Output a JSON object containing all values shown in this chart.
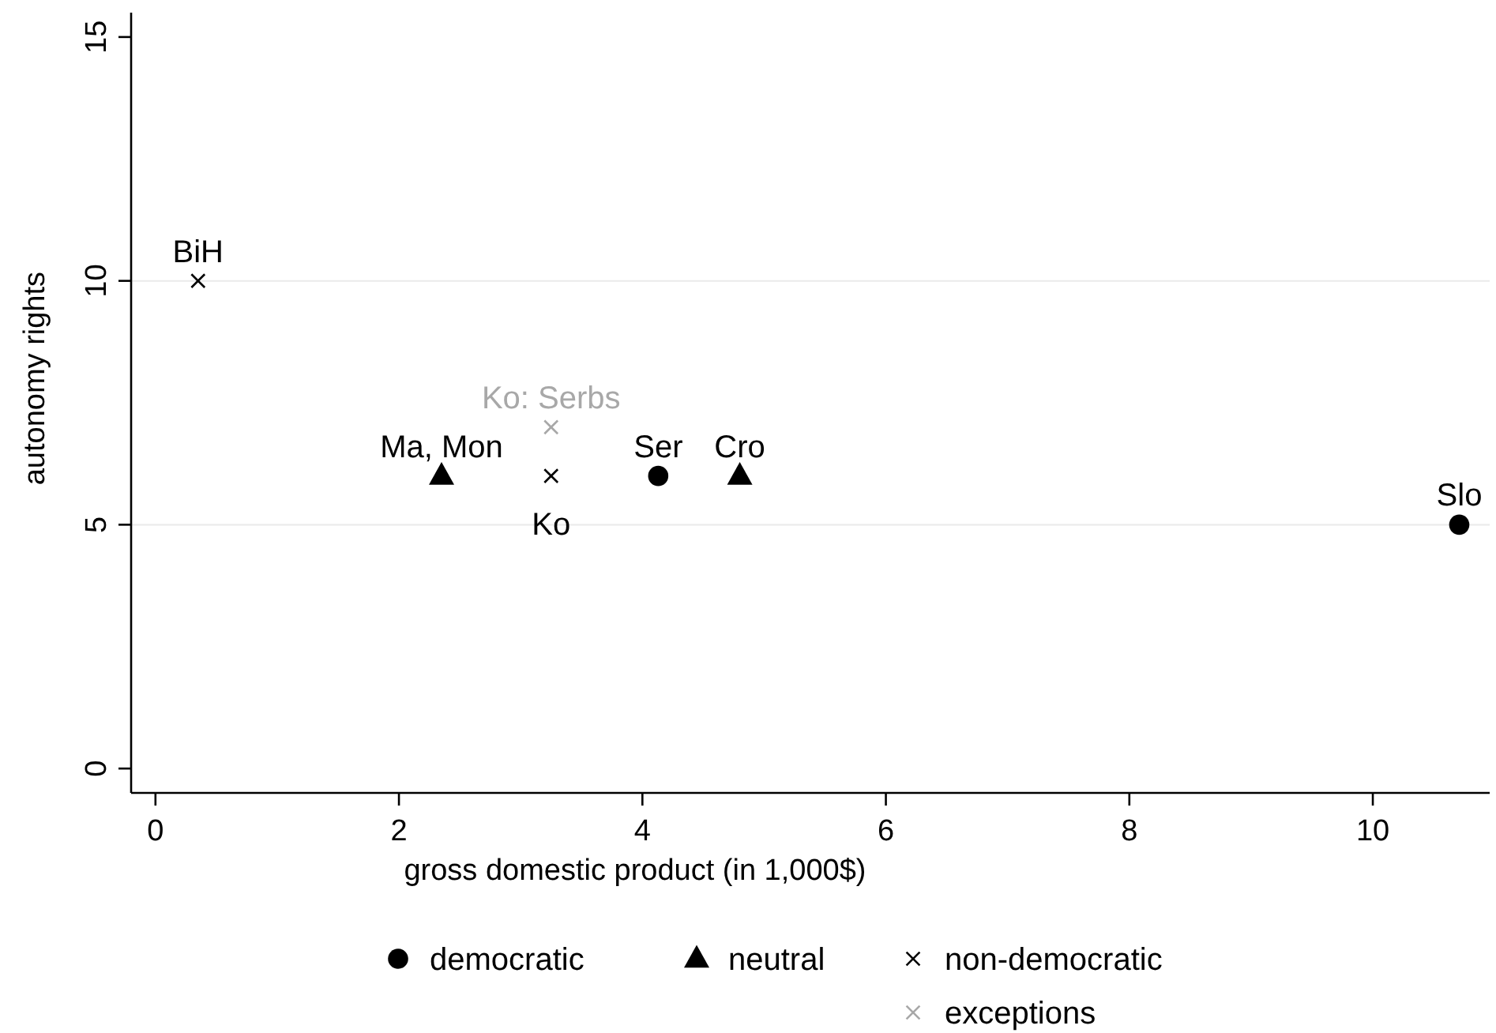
{
  "chart_data": {
    "type": "scatter",
    "xlabel": "gross domestic product (in 1,000$)",
    "ylabel": "autonomy rights",
    "xlim": [
      -0.2,
      10.96
    ],
    "ylim": [
      -0.5,
      15.5
    ],
    "xticks": [
      0,
      2,
      4,
      6,
      8,
      10
    ],
    "yticks": [
      0,
      5,
      10,
      15
    ],
    "grid": "y",
    "legend": "bottom",
    "series": [
      {
        "name": "democratic",
        "color": "#000000",
        "marker": "circle",
        "x": [
          4.13,
          10.71
        ],
        "values": [
          6,
          5
        ]
      },
      {
        "name": "neutral",
        "color": "#000000",
        "marker": "triangle",
        "x": [
          2.35,
          4.8
        ],
        "values": [
          6,
          6
        ]
      },
      {
        "name": "non-democratic",
        "color": "#000000",
        "marker": "cross",
        "x": [
          0.35,
          3.25
        ],
        "values": [
          10,
          6
        ]
      },
      {
        "name": "exceptions",
        "color": "#a8a8a8",
        "marker": "cross",
        "x": [
          3.25
        ],
        "values": [
          7
        ]
      }
    ],
    "annotations": [
      {
        "text": "BiH",
        "x": 0.35,
        "y": 10
      },
      {
        "text": "Ma, Mon",
        "x": 2.35,
        "y": 6
      },
      {
        "text": "Ko",
        "x": 3.25,
        "y": 6
      },
      {
        "text": "Ko: Serbs",
        "x": 3.25,
        "y": 7
      },
      {
        "text": "Ser",
        "x": 4.13,
        "y": 6
      },
      {
        "text": "Cro",
        "x": 4.8,
        "y": 6
      },
      {
        "text": "Slo",
        "x": 10.71,
        "y": 5
      }
    ]
  }
}
